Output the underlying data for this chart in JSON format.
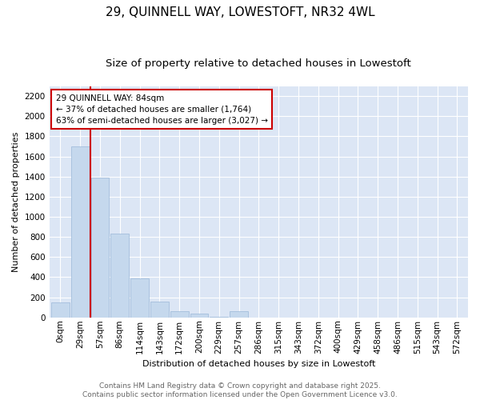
{
  "title": "29, QUINNELL WAY, LOWESTOFT, NR32 4WL",
  "subtitle": "Size of property relative to detached houses in Lowestoft",
  "xlabel": "Distribution of detached houses by size in Lowestoft",
  "ylabel": "Number of detached properties",
  "bar_color": "#c5d8ed",
  "bar_edge_color": "#9ab8d8",
  "background_color": "#dce6f5",
  "grid_color": "#ffffff",
  "categories": [
    "0sqm",
    "29sqm",
    "57sqm",
    "86sqm",
    "114sqm",
    "143sqm",
    "172sqm",
    "200sqm",
    "229sqm",
    "257sqm",
    "286sqm",
    "315sqm",
    "343sqm",
    "372sqm",
    "400sqm",
    "429sqm",
    "458sqm",
    "486sqm",
    "515sqm",
    "543sqm",
    "572sqm"
  ],
  "values": [
    150,
    1700,
    1390,
    830,
    390,
    160,
    60,
    35,
    5,
    60,
    0,
    0,
    0,
    0,
    0,
    0,
    0,
    0,
    0,
    0,
    0
  ],
  "ylim": [
    0,
    2300
  ],
  "yticks": [
    0,
    200,
    400,
    600,
    800,
    1000,
    1200,
    1400,
    1600,
    1800,
    2000,
    2200
  ],
  "vline_color": "#cc0000",
  "annotation_text": "29 QUINNELL WAY: 84sqm\n← 37% of detached houses are smaller (1,764)\n63% of semi-detached houses are larger (3,027) →",
  "annotation_box_color": "#cc0000",
  "footer_text": "Contains HM Land Registry data © Crown copyright and database right 2025.\nContains public sector information licensed under the Open Government Licence v3.0.",
  "title_fontsize": 11,
  "subtitle_fontsize": 9.5,
  "axis_label_fontsize": 8,
  "tick_fontsize": 7.5,
  "annotation_fontsize": 7.5,
  "footer_fontsize": 6.5
}
